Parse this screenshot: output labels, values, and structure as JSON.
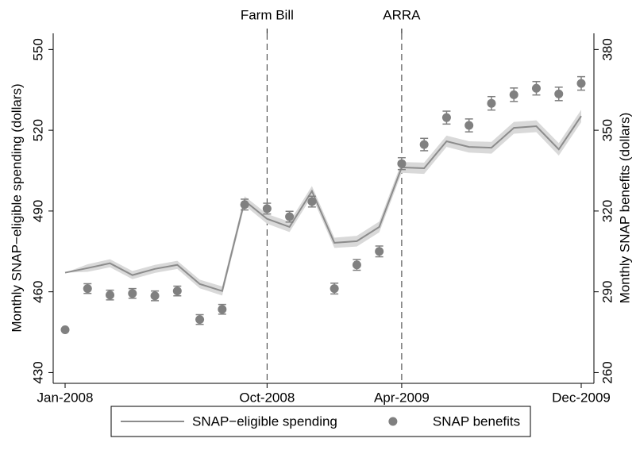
{
  "chart_data": {
    "type": "line",
    "categories": [
      "Jan-2008",
      null,
      null,
      null,
      null,
      null,
      null,
      null,
      null,
      "Oct-2008",
      null,
      null,
      null,
      null,
      null,
      "Apr-2009",
      null,
      null,
      null,
      null,
      null,
      null,
      null,
      "Dec-2009"
    ],
    "y_label": "Monthly SNAP−eligible spending (dollars)",
    "y2_label": "Monthly SNAP benefits (dollars)",
    "ylim": [
      426,
      556
    ],
    "yticks": [
      430,
      460,
      490,
      520,
      550
    ],
    "y2lim": [
      256,
      386
    ],
    "y2ticks": [
      260,
      290,
      320,
      350,
      380
    ],
    "annotations": [
      {
        "label": "Farm Bill",
        "x": "Oct-2008"
      },
      {
        "label": "ARRA",
        "x": "Apr-2009"
      }
    ],
    "legend": "bottom",
    "series": [
      {
        "name": "SNAP−eligible spending",
        "type": "line",
        "color": "#8c8c8c",
        "band_color": "#d9d9d9",
        "axis": "y",
        "values": [
          467.1,
          468.8,
          470.6,
          466.2,
          468.5,
          470,
          462.9,
          460.3,
          493.8,
          487.1,
          484.1,
          497.4,
          478.2,
          478.8,
          484.1,
          506.2,
          505.9,
          515.9,
          513.8,
          513.5,
          520.9,
          521.5,
          512.9,
          525.3
        ],
        "lower": [
          467.1,
          467.4,
          469.1,
          464.7,
          467,
          468.5,
          461.3,
          458.6,
          492.1,
          485.3,
          482.2,
          495.5,
          476.3,
          476.8,
          482.1,
          504.2,
          503.8,
          513.8,
          511.7,
          511.3,
          518.7,
          519.3,
          510.6,
          523
        ],
        "upper": [
          467.1,
          470.2,
          472.1,
          467.7,
          470,
          471.5,
          464.5,
          462,
          495.5,
          488.9,
          486,
          499.3,
          480.1,
          480.8,
          486.1,
          508.2,
          508,
          518,
          515.9,
          515.7,
          523.1,
          523.7,
          515.2,
          527.6
        ]
      },
      {
        "name": "SNAP benefits",
        "type": "scatter",
        "color": "#808080",
        "axis": "y2",
        "values": [
          275.9,
          291.2,
          288.8,
          289.4,
          288.5,
          290.3,
          279.7,
          283.5,
          322.4,
          320.9,
          317.9,
          323.5,
          291.2,
          300,
          305,
          337.6,
          344.7,
          354.7,
          351.8,
          360,
          363.2,
          365.6,
          363.5,
          367.4
        ],
        "errors": [
          null,
          1.8,
          1.8,
          1.8,
          1.8,
          1.8,
          1.8,
          1.8,
          2,
          2,
          2,
          2,
          2,
          2,
          2,
          2.2,
          2.3,
          2.4,
          2.4,
          2.5,
          2.5,
          2.5,
          2.5,
          2.5
        ]
      }
    ]
  }
}
